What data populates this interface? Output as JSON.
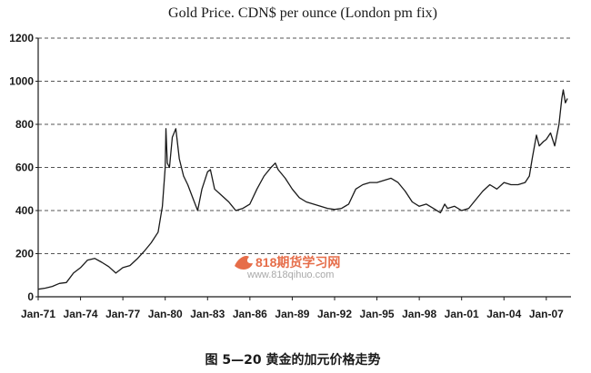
{
  "chart_data": {
    "type": "line",
    "title": "Gold Price. CDN$ per ounce (London pm fix)",
    "xlabel": "",
    "ylabel": "",
    "ylim": [
      0,
      1200
    ],
    "y_ticks": [
      0,
      200,
      400,
      600,
      800,
      1000,
      1200
    ],
    "x_range": [
      1971.0,
      2008.75
    ],
    "x_ticks": [
      {
        "label": "Jan-71",
        "x": 1971
      },
      {
        "label": "Jan-74",
        "x": 1974
      },
      {
        "label": "Jan-77",
        "x": 1977
      },
      {
        "label": "Jan-80",
        "x": 1980
      },
      {
        "label": "Jan-83",
        "x": 1983
      },
      {
        "label": "Jan-86",
        "x": 1986
      },
      {
        "label": "Jan-89",
        "x": 1989
      },
      {
        "label": "Jan-92",
        "x": 1992
      },
      {
        "label": "Jan-95",
        "x": 1995
      },
      {
        "label": "Jan-98",
        "x": 1998
      },
      {
        "label": "Jan-01",
        "x": 2001
      },
      {
        "label": "Jan-04",
        "x": 2004
      },
      {
        "label": "Jan-07",
        "x": 2007
      }
    ],
    "grid": "horizontal dashed",
    "legend": "none",
    "line_color": "#1a1a1a",
    "series": [
      {
        "points": [
          [
            1971.0,
            35
          ],
          [
            1971.5,
            40
          ],
          [
            1972.0,
            48
          ],
          [
            1972.5,
            62
          ],
          [
            1973.0,
            66
          ],
          [
            1973.5,
            110
          ],
          [
            1974.0,
            135
          ],
          [
            1974.5,
            170
          ],
          [
            1975.0,
            178
          ],
          [
            1975.5,
            160
          ],
          [
            1976.0,
            140
          ],
          [
            1976.5,
            110
          ],
          [
            1977.0,
            135
          ],
          [
            1977.5,
            145
          ],
          [
            1978.0,
            175
          ],
          [
            1978.5,
            210
          ],
          [
            1979.0,
            250
          ],
          [
            1979.5,
            300
          ],
          [
            1979.8,
            420
          ],
          [
            1980.0,
            600
          ],
          [
            1980.05,
            780
          ],
          [
            1980.15,
            620
          ],
          [
            1980.3,
            600
          ],
          [
            1980.5,
            740
          ],
          [
            1980.75,
            780
          ],
          [
            1981.0,
            640
          ],
          [
            1981.3,
            560
          ],
          [
            1981.6,
            520
          ],
          [
            1982.0,
            450
          ],
          [
            1982.3,
            400
          ],
          [
            1982.6,
            500
          ],
          [
            1983.0,
            580
          ],
          [
            1983.2,
            590
          ],
          [
            1983.5,
            500
          ],
          [
            1984.0,
            470
          ],
          [
            1984.5,
            440
          ],
          [
            1985.0,
            400
          ],
          [
            1985.5,
            410
          ],
          [
            1986.0,
            430
          ],
          [
            1986.5,
            500
          ],
          [
            1987.0,
            560
          ],
          [
            1987.5,
            600
          ],
          [
            1987.8,
            620
          ],
          [
            1988.0,
            590
          ],
          [
            1988.5,
            550
          ],
          [
            1989.0,
            500
          ],
          [
            1989.5,
            460
          ],
          [
            1990.0,
            440
          ],
          [
            1990.5,
            430
          ],
          [
            1991.0,
            420
          ],
          [
            1991.5,
            410
          ],
          [
            1992.0,
            405
          ],
          [
            1992.5,
            410
          ],
          [
            1993.0,
            430
          ],
          [
            1993.5,
            500
          ],
          [
            1994.0,
            520
          ],
          [
            1994.5,
            530
          ],
          [
            1995.0,
            530
          ],
          [
            1995.5,
            540
          ],
          [
            1996.0,
            550
          ],
          [
            1996.5,
            530
          ],
          [
            1997.0,
            490
          ],
          [
            1997.5,
            440
          ],
          [
            1998.0,
            420
          ],
          [
            1998.5,
            430
          ],
          [
            1999.0,
            410
          ],
          [
            1999.5,
            390
          ],
          [
            1999.8,
            430
          ],
          [
            2000.0,
            410
          ],
          [
            2000.5,
            420
          ],
          [
            2001.0,
            400
          ],
          [
            2001.5,
            410
          ],
          [
            2002.0,
            450
          ],
          [
            2002.5,
            490
          ],
          [
            2003.0,
            520
          ],
          [
            2003.5,
            500
          ],
          [
            2004.0,
            530
          ],
          [
            2004.5,
            520
          ],
          [
            2005.0,
            520
          ],
          [
            2005.5,
            530
          ],
          [
            2005.8,
            560
          ],
          [
            2006.0,
            640
          ],
          [
            2006.3,
            750
          ],
          [
            2006.5,
            700
          ],
          [
            2006.8,
            720
          ],
          [
            2007.0,
            730
          ],
          [
            2007.3,
            760
          ],
          [
            2007.6,
            700
          ],
          [
            2007.9,
            800
          ],
          [
            2008.1,
            920
          ],
          [
            2008.2,
            960
          ],
          [
            2008.35,
            900
          ],
          [
            2008.5,
            920
          ]
        ]
      }
    ]
  },
  "caption": "图 5—20   黄金的加元价格走势",
  "watermark": {
    "main": "818期货学习网",
    "url": "www.818qihuo.com"
  }
}
